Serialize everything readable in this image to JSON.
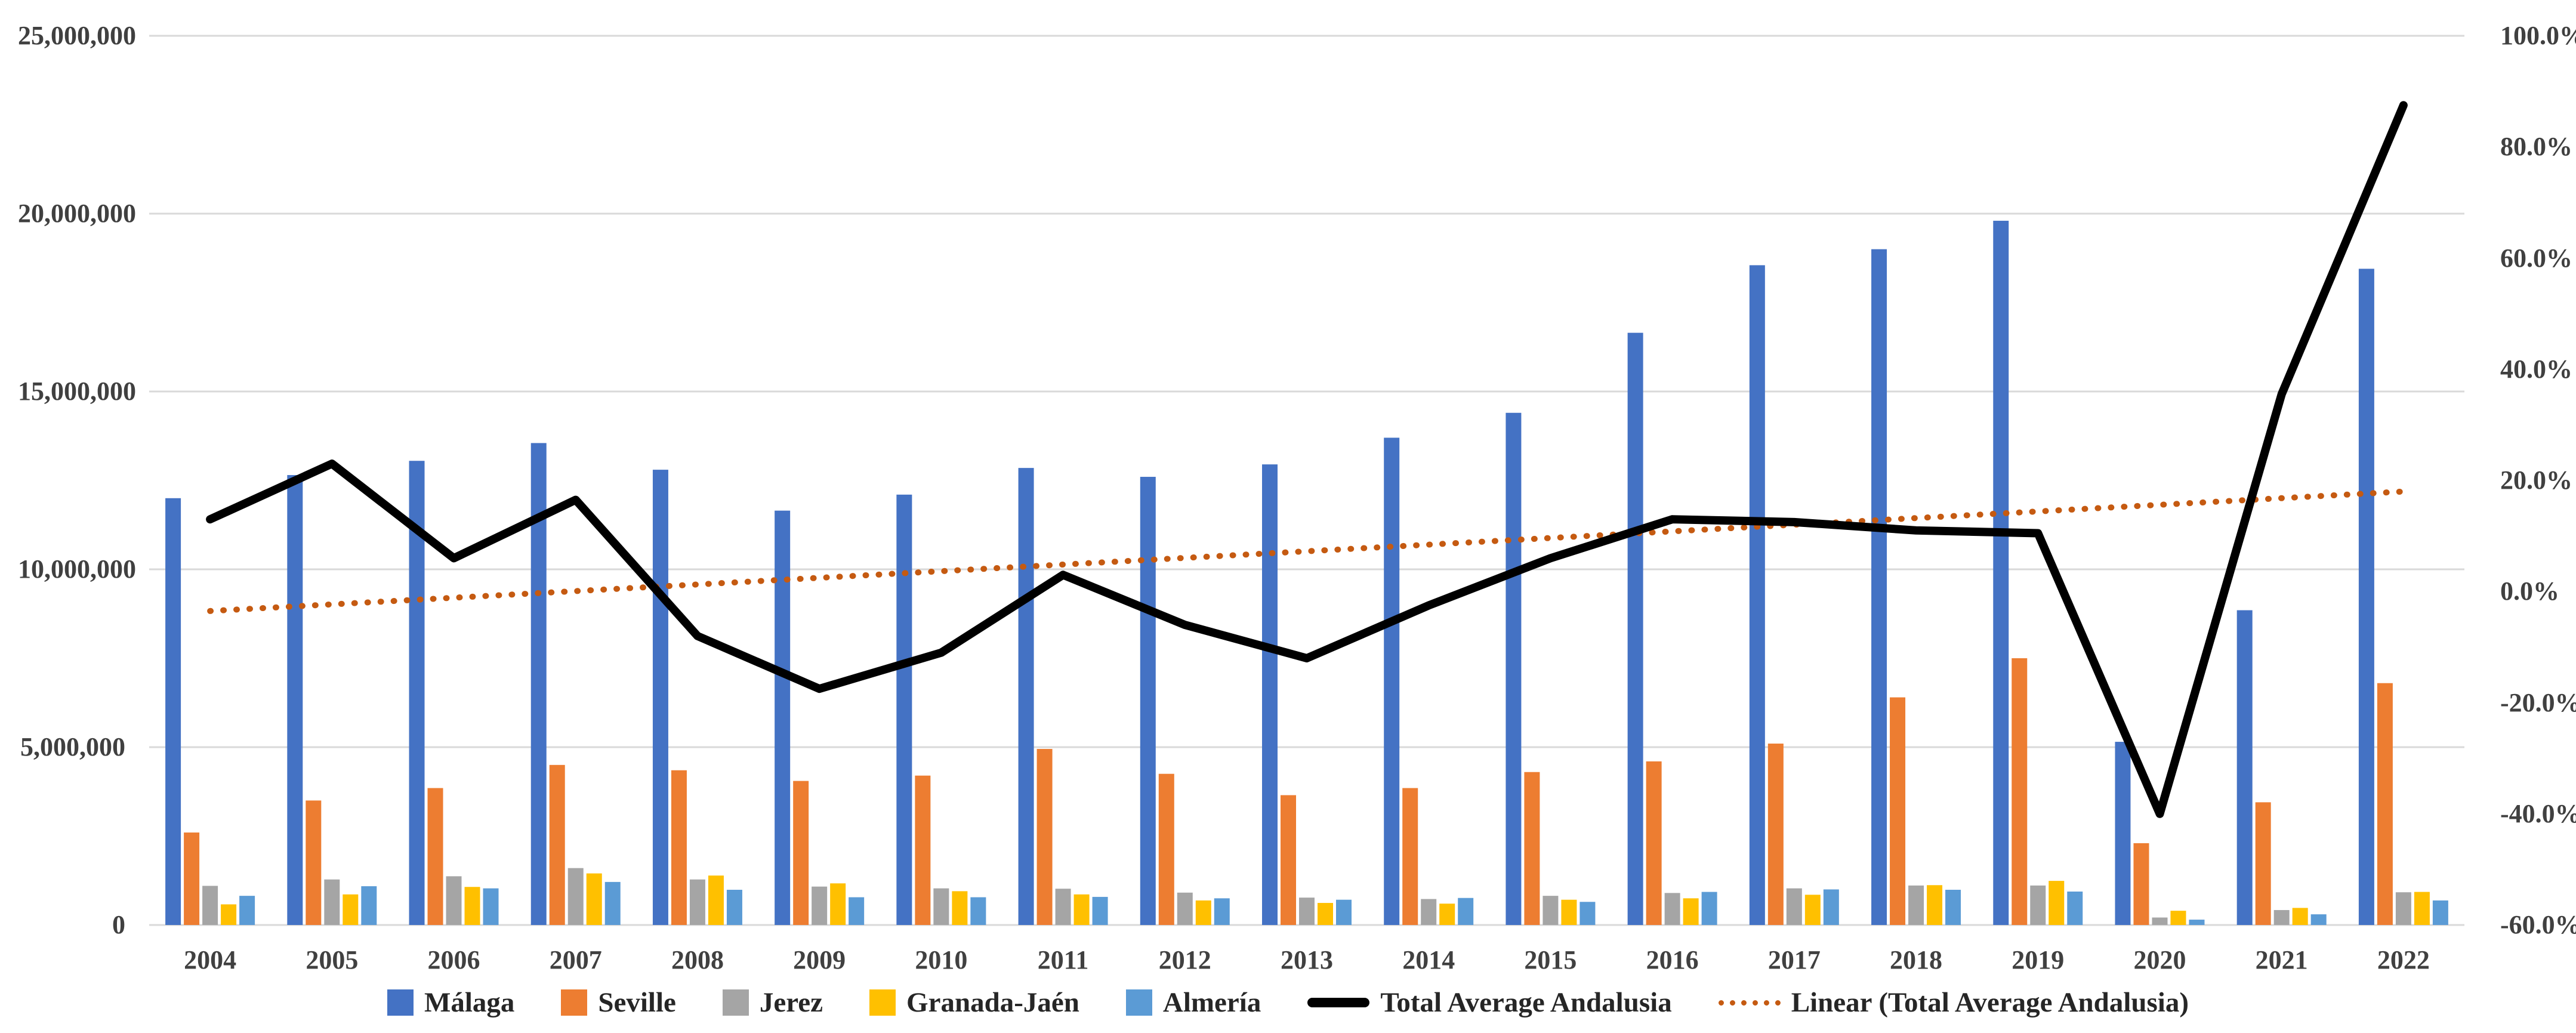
{
  "chart_data": {
    "type": "combo-bar-line",
    "title": "",
    "categories": [
      "2004",
      "2005",
      "2006",
      "2007",
      "2008",
      "2009",
      "2010",
      "2011",
      "2012",
      "2013",
      "2014",
      "2015",
      "2016",
      "2017",
      "2018",
      "2019",
      "2020",
      "2021",
      "2022"
    ],
    "bar_series": [
      {
        "name": "Málaga",
        "color": "#4472C4",
        "values": [
          12000000,
          12650000,
          13050000,
          13550000,
          12800000,
          11650000,
          12100000,
          12850000,
          12600000,
          12950000,
          13700000,
          14400000,
          16650000,
          18550000,
          19000000,
          19800000,
          5150000,
          8850000,
          18450000
        ]
      },
      {
        "name": "Seville",
        "color": "#ED7D31",
        "values": [
          2600000,
          3500000,
          3850000,
          4500000,
          4350000,
          4050000,
          4200000,
          4950000,
          4250000,
          3650000,
          3850000,
          4300000,
          4600000,
          5100000,
          6400000,
          7500000,
          2300000,
          3450000,
          6800000
        ]
      },
      {
        "name": "Jerez",
        "color": "#A5A5A5",
        "values": [
          1100000,
          1280000,
          1370000,
          1600000,
          1280000,
          1080000,
          1030000,
          1020000,
          910000,
          770000,
          730000,
          820000,
          900000,
          1030000,
          1110000,
          1110000,
          210000,
          420000,
          920000
        ]
      },
      {
        "name": "Granada-Jaén",
        "color": "#FFC000",
        "values": [
          580000,
          860000,
          1070000,
          1450000,
          1390000,
          1170000,
          950000,
          860000,
          690000,
          620000,
          600000,
          710000,
          750000,
          850000,
          1120000,
          1240000,
          400000,
          480000,
          930000
        ]
      },
      {
        "name": "Almería",
        "color": "#5B9BD5",
        "values": [
          820000,
          1090000,
          1030000,
          1210000,
          990000,
          780000,
          780000,
          790000,
          750000,
          710000,
          760000,
          650000,
          930000,
          1000000,
          990000,
          940000,
          150000,
          300000,
          690000
        ]
      }
    ],
    "line_series": {
      "name": "Total Average Andalusia",
      "color": "#000000",
      "axis": "right",
      "values_pct": [
        13,
        23,
        6,
        16.5,
        -8,
        -17.5,
        -11,
        3,
        -6,
        -12,
        -2.5,
        6,
        13,
        12.5,
        11,
        10.5,
        -40,
        35.5,
        87.5
      ]
    },
    "trendline": {
      "name": "Linear (Total Average Andalusia)",
      "color": "#C55A11",
      "start_pct": -3.5,
      "end_pct": 18
    },
    "left_axis": {
      "min": 0,
      "max": 25000000,
      "step": 5000000,
      "labels": [
        "25,000,000",
        "20,000,000",
        "15,000,000",
        "10,000,000",
        "5,000,000",
        "0"
      ]
    },
    "right_axis": {
      "min": -60,
      "max": 100,
      "step": 20,
      "labels": [
        "100.0%",
        "80.0%",
        "60.0%",
        "40.0%",
        "20.0%",
        "0.0%",
        "-20.0%",
        "-40.0%",
        "-60.0%"
      ]
    },
    "grid": "horizontal-only",
    "gridline_color": "#D9D9D9",
    "legend_position": "bottom"
  },
  "legend": {
    "items": [
      {
        "label": "Málaga",
        "swatch": "square",
        "color": "#4472C4"
      },
      {
        "label": "Seville",
        "swatch": "square",
        "color": "#ED7D31"
      },
      {
        "label": "Jerez",
        "swatch": "square",
        "color": "#A5A5A5"
      },
      {
        "label": "Granada-Jaén",
        "swatch": "square",
        "color": "#FFC000"
      },
      {
        "label": "Almería",
        "swatch": "square",
        "color": "#5B9BD5"
      },
      {
        "label": "Total Average Andalusia",
        "swatch": "line",
        "color": "#000000"
      },
      {
        "label": "Linear (Total Average Andalusia)",
        "swatch": "dotted",
        "color": "#C55A11"
      }
    ]
  }
}
